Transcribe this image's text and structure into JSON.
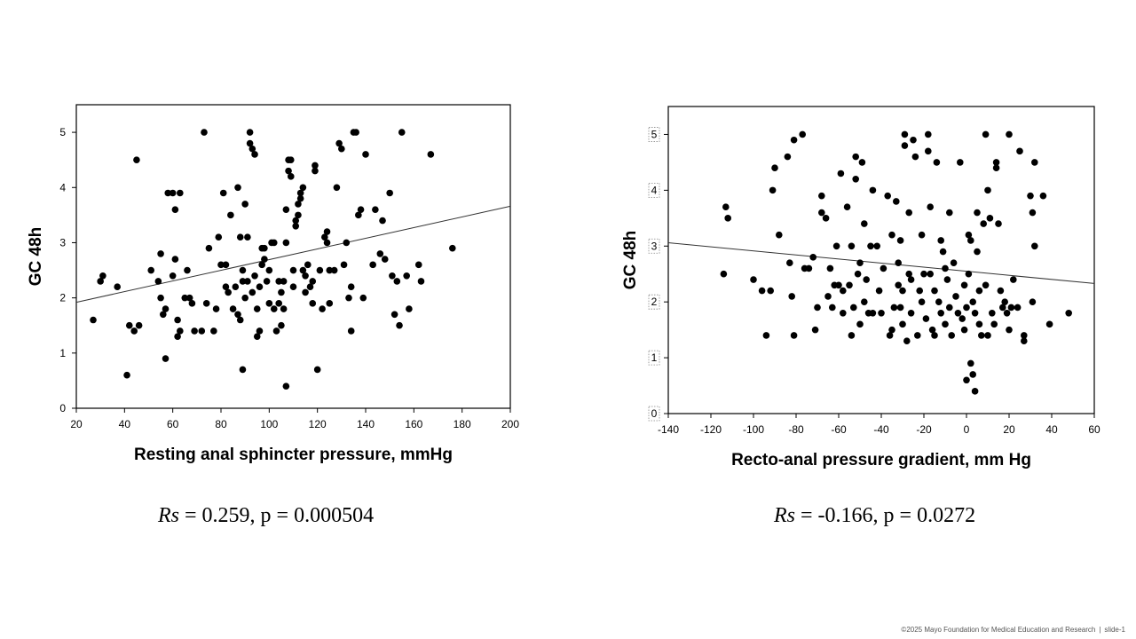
{
  "chart_data": [
    {
      "type": "scatter",
      "xlabel": "Resting anal sphincter pressure, mmHg",
      "ylabel": "GC 48h",
      "xlim": [
        20,
        200
      ],
      "ylim": [
        0,
        5.5
      ],
      "xticks": [
        20,
        40,
        60,
        80,
        100,
        120,
        140,
        160,
        180,
        200
      ],
      "yticks": [
        0,
        1,
        2,
        3,
        4,
        5
      ],
      "trendline": {
        "x": [
          20,
          200
        ],
        "y": [
          1.92,
          3.66
        ]
      },
      "points": [
        [
          27,
          1.6
        ],
        [
          30,
          2.3
        ],
        [
          31,
          2.4
        ],
        [
          37,
          2.2
        ],
        [
          41,
          0.6
        ],
        [
          42,
          1.5
        ],
        [
          44,
          1.4
        ],
        [
          45,
          4.5
        ],
        [
          46,
          1.5
        ],
        [
          51,
          2.5
        ],
        [
          54,
          2.3
        ],
        [
          55,
          2.8
        ],
        [
          55,
          2.0
        ],
        [
          56,
          1.7
        ],
        [
          57,
          0.9
        ],
        [
          57,
          1.8
        ],
        [
          58,
          3.9
        ],
        [
          60,
          3.9
        ],
        [
          60,
          2.4
        ],
        [
          61,
          3.6
        ],
        [
          61,
          2.7
        ],
        [
          62,
          1.3
        ],
        [
          62,
          1.6
        ],
        [
          63,
          1.4
        ],
        [
          63,
          3.9
        ],
        [
          65,
          2.0
        ],
        [
          66,
          2.5
        ],
        [
          67,
          2.0
        ],
        [
          68,
          1.9
        ],
        [
          69,
          1.4
        ],
        [
          72,
          1.4
        ],
        [
          73,
          5.0
        ],
        [
          74,
          1.9
        ],
        [
          75,
          2.9
        ],
        [
          77,
          1.4
        ],
        [
          78,
          1.8
        ],
        [
          79,
          3.1
        ],
        [
          80,
          2.6
        ],
        [
          81,
          3.9
        ],
        [
          82,
          2.6
        ],
        [
          82,
          2.2
        ],
        [
          83,
          2.1
        ],
        [
          84,
          3.5
        ],
        [
          85,
          1.8
        ],
        [
          86,
          2.2
        ],
        [
          87,
          1.7
        ],
        [
          87,
          4.0
        ],
        [
          88,
          1.6
        ],
        [
          88,
          3.1
        ],
        [
          89,
          2.3
        ],
        [
          89,
          2.5
        ],
        [
          90,
          2.0
        ],
        [
          90,
          3.7
        ],
        [
          91,
          2.3
        ],
        [
          91,
          3.1
        ],
        [
          92,
          5.0
        ],
        [
          92,
          4.8
        ],
        [
          93,
          4.7
        ],
        [
          93,
          2.1
        ],
        [
          94,
          4.6
        ],
        [
          94,
          2.4
        ],
        [
          95,
          1.3
        ],
        [
          95,
          1.8
        ],
        [
          96,
          1.4
        ],
        [
          96,
          2.2
        ],
        [
          97,
          2.6
        ],
        [
          98,
          2.7
        ],
        [
          98,
          2.9
        ],
        [
          99,
          2.3
        ],
        [
          100,
          1.9
        ],
        [
          100,
          2.5
        ],
        [
          101,
          3.0
        ],
        [
          102,
          3.0
        ],
        [
          102,
          1.8
        ],
        [
          103,
          1.4
        ],
        [
          104,
          1.9
        ],
        [
          104,
          2.3
        ],
        [
          105,
          1.5
        ],
        [
          105,
          2.1
        ],
        [
          106,
          2.3
        ],
        [
          106,
          1.8
        ],
        [
          107,
          3.0
        ],
        [
          107,
          3.6
        ],
        [
          108,
          4.3
        ],
        [
          108,
          4.5
        ],
        [
          109,
          4.2
        ],
        [
          109,
          4.5
        ],
        [
          110,
          2.2
        ],
        [
          110,
          2.5
        ],
        [
          111,
          3.3
        ],
        [
          111,
          3.4
        ],
        [
          112,
          3.5
        ],
        [
          112,
          3.7
        ],
        [
          113,
          3.9
        ],
        [
          113,
          3.8
        ],
        [
          114,
          2.5
        ],
        [
          114,
          4.0
        ],
        [
          115,
          2.4
        ],
        [
          115,
          2.1
        ],
        [
          116,
          2.6
        ],
        [
          117,
          2.2
        ],
        [
          118,
          2.3
        ],
        [
          118,
          1.9
        ],
        [
          119,
          4.3
        ],
        [
          119,
          4.4
        ],
        [
          120,
          0.7
        ],
        [
          121,
          2.5
        ],
        [
          122,
          1.8
        ],
        [
          123,
          3.1
        ],
        [
          124,
          3.0
        ],
        [
          124,
          3.2
        ],
        [
          125,
          2.5
        ],
        [
          125,
          1.9
        ],
        [
          127,
          2.5
        ],
        [
          128,
          4.0
        ],
        [
          129,
          4.8
        ],
        [
          130,
          4.7
        ],
        [
          131,
          2.6
        ],
        [
          132,
          3.0
        ],
        [
          133,
          2.0
        ],
        [
          134,
          2.2
        ],
        [
          134,
          1.4
        ],
        [
          135,
          5.0
        ],
        [
          136,
          5.0
        ],
        [
          137,
          3.5
        ],
        [
          138,
          3.6
        ],
        [
          139,
          2.0
        ],
        [
          140,
          4.6
        ],
        [
          143,
          2.6
        ],
        [
          144,
          3.6
        ],
        [
          146,
          2.8
        ],
        [
          147,
          3.4
        ],
        [
          148,
          2.7
        ],
        [
          150,
          3.9
        ],
        [
          151,
          2.4
        ],
        [
          152,
          1.7
        ],
        [
          153,
          2.3
        ],
        [
          154,
          1.5
        ],
        [
          155,
          5.0
        ],
        [
          157,
          2.4
        ],
        [
          158,
          1.8
        ],
        [
          162,
          2.6
        ],
        [
          163,
          2.3
        ],
        [
          167,
          4.6
        ],
        [
          176,
          2.9
        ],
        [
          107,
          0.4
        ],
        [
          89,
          0.7
        ],
        [
          97,
          2.9
        ]
      ]
    },
    {
      "type": "scatter",
      "xlabel": "Recto-anal pressure gradient, mm Hg",
      "ylabel": "GC 48h",
      "xlim": [
        -140,
        60
      ],
      "ylim": [
        0,
        5.5
      ],
      "xticks": [
        -140,
        -120,
        -100,
        -80,
        -60,
        -40,
        -20,
        0,
        20,
        40,
        60
      ],
      "yticks": [
        0,
        1,
        2,
        3,
        4,
        5
      ],
      "trendline": {
        "x": [
          -140,
          60
        ],
        "y": [
          3.06,
          2.33
        ]
      },
      "points": [
        [
          -114,
          2.5
        ],
        [
          -113,
          3.7
        ],
        [
          -112,
          3.5
        ],
        [
          -100,
          2.4
        ],
        [
          -96,
          2.2
        ],
        [
          -94,
          1.4
        ],
        [
          -92,
          2.2
        ],
        [
          -91,
          4.0
        ],
        [
          -90,
          4.4
        ],
        [
          -88,
          3.2
        ],
        [
          -84,
          4.6
        ],
        [
          -83,
          2.7
        ],
        [
          -82,
          2.1
        ],
        [
          -81,
          4.9
        ],
        [
          -81,
          1.4
        ],
        [
          -77,
          5.0
        ],
        [
          -76,
          2.6
        ],
        [
          -74,
          2.6
        ],
        [
          -72,
          2.8
        ],
        [
          -71,
          1.5
        ],
        [
          -70,
          1.9
        ],
        [
          -68,
          3.9
        ],
        [
          -68,
          3.6
        ],
        [
          -66,
          3.5
        ],
        [
          -65,
          2.1
        ],
        [
          -64,
          2.6
        ],
        [
          -63,
          1.9
        ],
        [
          -62,
          2.3
        ],
        [
          -61,
          3.0
        ],
        [
          -60,
          2.3
        ],
        [
          -59,
          4.3
        ],
        [
          -58,
          2.2
        ],
        [
          -58,
          1.8
        ],
        [
          -56,
          3.7
        ],
        [
          -55,
          2.3
        ],
        [
          -54,
          3.0
        ],
        [
          -54,
          1.4
        ],
        [
          -53,
          1.9
        ],
        [
          -52,
          4.2
        ],
        [
          -52,
          4.6
        ],
        [
          -51,
          2.5
        ],
        [
          -50,
          2.7
        ],
        [
          -50,
          1.6
        ],
        [
          -49,
          4.5
        ],
        [
          -48,
          3.4
        ],
        [
          -48,
          2.0
        ],
        [
          -47,
          2.4
        ],
        [
          -46,
          1.8
        ],
        [
          -45,
          3.0
        ],
        [
          -44,
          4.0
        ],
        [
          -44,
          1.8
        ],
        [
          -42,
          3.0
        ],
        [
          -41,
          2.2
        ],
        [
          -40,
          1.8
        ],
        [
          -39,
          2.6
        ],
        [
          -37,
          3.9
        ],
        [
          -36,
          1.4
        ],
        [
          -35,
          3.2
        ],
        [
          -35,
          1.5
        ],
        [
          -34,
          1.9
        ],
        [
          -33,
          3.8
        ],
        [
          -32,
          2.3
        ],
        [
          -32,
          2.7
        ],
        [
          -31,
          3.1
        ],
        [
          -31,
          1.9
        ],
        [
          -30,
          2.2
        ],
        [
          -30,
          1.6
        ],
        [
          -29,
          5.0
        ],
        [
          -29,
          4.8
        ],
        [
          -28,
          1.3
        ],
        [
          -27,
          2.5
        ],
        [
          -27,
          3.6
        ],
        [
          -26,
          2.4
        ],
        [
          -26,
          1.8
        ],
        [
          -25,
          4.9
        ],
        [
          -24,
          4.6
        ],
        [
          -23,
          1.4
        ],
        [
          -22,
          2.2
        ],
        [
          -21,
          3.2
        ],
        [
          -21,
          2.0
        ],
        [
          -20,
          2.5
        ],
        [
          -19,
          1.7
        ],
        [
          -18,
          5.0
        ],
        [
          -18,
          4.7
        ],
        [
          -17,
          3.7
        ],
        [
          -17,
          2.5
        ],
        [
          -16,
          1.5
        ],
        [
          -15,
          2.2
        ],
        [
          -15,
          1.4
        ],
        [
          -14,
          4.5
        ],
        [
          -13,
          2.0
        ],
        [
          -12,
          3.1
        ],
        [
          -12,
          1.8
        ],
        [
          -11,
          2.9
        ],
        [
          -10,
          2.6
        ],
        [
          -10,
          1.6
        ],
        [
          -9,
          2.4
        ],
        [
          -8,
          3.6
        ],
        [
          -8,
          1.9
        ],
        [
          -7,
          1.4
        ],
        [
          -6,
          2.7
        ],
        [
          -5,
          2.1
        ],
        [
          -4,
          1.8
        ],
        [
          -3,
          4.5
        ],
        [
          -2,
          1.7
        ],
        [
          -1,
          2.3
        ],
        [
          -1,
          1.5
        ],
        [
          0,
          0.6
        ],
        [
          0,
          1.9
        ],
        [
          1,
          3.2
        ],
        [
          1,
          2.5
        ],
        [
          2,
          0.9
        ],
        [
          2,
          3.1
        ],
        [
          3,
          0.7
        ],
        [
          3,
          2.0
        ],
        [
          4,
          0.4
        ],
        [
          4,
          1.8
        ],
        [
          5,
          2.9
        ],
        [
          5,
          3.6
        ],
        [
          6,
          2.2
        ],
        [
          6,
          1.6
        ],
        [
          7,
          1.4
        ],
        [
          8,
          3.4
        ],
        [
          9,
          2.3
        ],
        [
          9,
          5.0
        ],
        [
          10,
          4.0
        ],
        [
          10,
          1.4
        ],
        [
          11,
          3.5
        ],
        [
          12,
          1.8
        ],
        [
          13,
          1.6
        ],
        [
          14,
          4.4
        ],
        [
          14,
          4.5
        ],
        [
          15,
          3.4
        ],
        [
          16,
          2.2
        ],
        [
          17,
          1.9
        ],
        [
          18,
          2.0
        ],
        [
          19,
          1.8
        ],
        [
          20,
          5.0
        ],
        [
          20,
          1.5
        ],
        [
          21,
          1.9
        ],
        [
          22,
          2.4
        ],
        [
          24,
          1.9
        ],
        [
          25,
          4.7
        ],
        [
          27,
          1.3
        ],
        [
          27,
          1.4
        ],
        [
          30,
          3.9
        ],
        [
          31,
          3.6
        ],
        [
          31,
          2.0
        ],
        [
          32,
          4.5
        ],
        [
          32,
          3.0
        ],
        [
          36,
          3.9
        ],
        [
          39,
          1.6
        ],
        [
          48,
          1.8
        ]
      ]
    }
  ],
  "stats": [
    {
      "label": "Rs",
      "text": " = 0.259, p = 0.000504"
    },
    {
      "label": "Rs",
      "text": " = -0.166, p = 0.0272"
    }
  ],
  "footer": {
    "copyright": "©2025 Mayo Foundation for Medical Education and Research",
    "separator": "|",
    "slide": "slide-1"
  }
}
